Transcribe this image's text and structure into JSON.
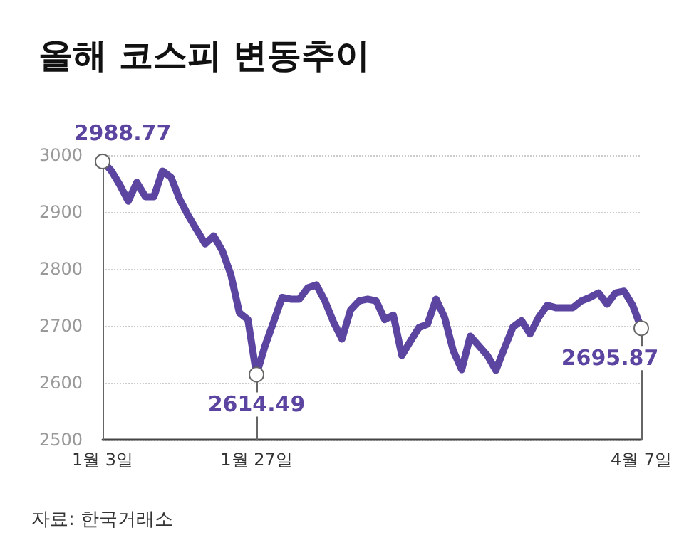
{
  "chart_data": {
    "type": "line",
    "title": "올해 코스피 변동추이",
    "categories": [
      "1월 3일",
      null,
      null,
      null,
      null,
      null,
      null,
      null,
      null,
      null,
      null,
      null,
      null,
      null,
      null,
      null,
      null,
      null,
      "1월 27일",
      null,
      null,
      null,
      null,
      null,
      null,
      null,
      null,
      null,
      null,
      null,
      null,
      null,
      null,
      null,
      null,
      null,
      null,
      null,
      null,
      null,
      null,
      null,
      null,
      null,
      null,
      null,
      null,
      null,
      null,
      null,
      null,
      null,
      null,
      null,
      null,
      null,
      null,
      null,
      null,
      null,
      null,
      null,
      null,
      "4월 7일"
    ],
    "series": [
      {
        "color": "#5b45a0",
        "values": [
          2988.77,
          2973,
          2948,
          2919,
          2952,
          2927,
          2927,
          2972,
          2961,
          2923,
          2894,
          2869,
          2844,
          2858,
          2832,
          2790,
          2723,
          2711,
          2614.49,
          2665,
          2707,
          2750,
          2747,
          2747,
          2767,
          2772,
          2744,
          2707,
          2677,
          2728,
          2744,
          2747,
          2744,
          2711,
          2719,
          2648,
          2673,
          2697,
          2703,
          2747,
          2715,
          2657,
          2623,
          2682,
          2665,
          2648,
          2622,
          2661,
          2698,
          2709,
          2686,
          2715,
          2736,
          2732,
          2732,
          2732,
          2744,
          2750,
          2758,
          2738,
          2758,
          2761,
          2736,
          2695.87
        ]
      }
    ],
    "ylim": [
      2500,
      3000
    ],
    "yticks": [
      2500,
      2600,
      2700,
      2800,
      2900,
      3000
    ],
    "grid": "y",
    "marker": "none",
    "line_style": "solid",
    "annotations": [
      {
        "text": "2988.77",
        "x": "1월 3일",
        "y": 2988.77
      },
      {
        "text": "2614.49",
        "x": "1월 27일",
        "y": 2614.49
      },
      {
        "text": "2695.87",
        "x": "4월 7일",
        "y": 2695.87
      },
      "자료: 한국거래소"
    ]
  }
}
